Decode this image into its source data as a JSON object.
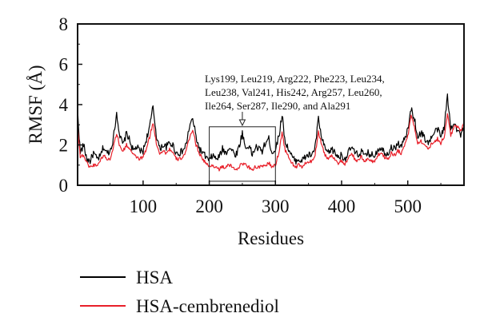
{
  "chart_data": {
    "type": "line",
    "xlabel": "Residues",
    "ylabel": "RMSF (Å)",
    "xlim": [
      1,
      585
    ],
    "ylim": [
      0,
      8
    ],
    "x_ticks": [
      100,
      200,
      300,
      400,
      500
    ],
    "y_ticks": [
      0,
      2,
      4,
      6,
      8
    ],
    "grid": false,
    "legend_position": "below",
    "annotation": {
      "lines": [
        "Lys199, Leu219, Arg222, Phe223, Leu234,",
        "Leu238, Val241, His242, Arg257, Leu260,",
        "Ile264, Ser287, Ile290, and Ala291"
      ],
      "box_x_range": [
        200,
        300
      ],
      "box_y_range": [
        0.2,
        2.9
      ],
      "arrow_x": 250
    },
    "series": [
      {
        "name": "HSA",
        "color": "#000000",
        "x": [
          1,
          5,
          10,
          15,
          20,
          25,
          30,
          35,
          40,
          45,
          50,
          55,
          60,
          65,
          70,
          75,
          80,
          85,
          90,
          95,
          100,
          105,
          110,
          115,
          120,
          125,
          130,
          135,
          140,
          145,
          150,
          155,
          160,
          165,
          170,
          175,
          180,
          185,
          190,
          195,
          200,
          205,
          210,
          215,
          220,
          225,
          230,
          235,
          240,
          245,
          250,
          255,
          260,
          265,
          270,
          275,
          280,
          285,
          290,
          295,
          300,
          305,
          310,
          315,
          320,
          325,
          330,
          335,
          340,
          345,
          350,
          355,
          360,
          365,
          370,
          375,
          380,
          385,
          390,
          395,
          400,
          405,
          410,
          415,
          420,
          425,
          430,
          435,
          440,
          445,
          450,
          455,
          460,
          465,
          470,
          475,
          480,
          485,
          490,
          495,
          500,
          505,
          510,
          515,
          520,
          525,
          530,
          535,
          540,
          545,
          550,
          555,
          560,
          565,
          570,
          575,
          580,
          585
        ],
        "values": [
          3.7,
          1.6,
          2.0,
          1.3,
          1.2,
          1.6,
          1.3,
          1.4,
          1.9,
          1.6,
          1.7,
          2.3,
          3.6,
          2.4,
          2.0,
          2.6,
          2.2,
          1.7,
          1.9,
          1.7,
          1.7,
          2.3,
          2.9,
          3.9,
          2.5,
          1.8,
          2.0,
          1.9,
          2.1,
          2.0,
          1.6,
          1.6,
          1.7,
          2.0,
          2.9,
          3.3,
          2.4,
          1.8,
          1.6,
          1.4,
          1.2,
          1.5,
          1.3,
          1.4,
          1.8,
          1.6,
          1.9,
          1.7,
          1.5,
          1.9,
          2.6,
          1.8,
          2.0,
          1.5,
          1.9,
          1.8,
          1.7,
          2.1,
          2.3,
          1.6,
          1.8,
          2.4,
          3.5,
          2.1,
          1.8,
          1.4,
          1.2,
          1.3,
          1.2,
          1.4,
          1.5,
          1.5,
          1.9,
          3.3,
          2.3,
          1.8,
          1.6,
          1.8,
          1.6,
          1.4,
          1.5,
          1.3,
          1.6,
          1.9,
          1.6,
          1.5,
          1.7,
          1.4,
          1.6,
          1.5,
          1.5,
          1.8,
          1.9,
          1.6,
          1.6,
          1.9,
          1.8,
          2.1,
          1.9,
          2.3,
          2.7,
          3.8,
          3.3,
          2.4,
          2.6,
          2.4,
          2.1,
          2.3,
          2.6,
          2.8,
          2.4,
          2.9,
          4.4,
          2.8,
          3.2,
          2.7,
          2.5,
          2.8
        ]
      },
      {
        "name": "HSA-cembrenediol",
        "color": "#e8202a",
        "x": [
          1,
          5,
          10,
          15,
          20,
          25,
          30,
          35,
          40,
          45,
          50,
          55,
          60,
          65,
          70,
          75,
          80,
          85,
          90,
          95,
          100,
          105,
          110,
          115,
          120,
          125,
          130,
          135,
          140,
          145,
          150,
          155,
          160,
          165,
          170,
          175,
          180,
          185,
          190,
          195,
          200,
          205,
          210,
          215,
          220,
          225,
          230,
          235,
          240,
          245,
          250,
          255,
          260,
          265,
          270,
          275,
          280,
          285,
          290,
          295,
          300,
          305,
          310,
          315,
          320,
          325,
          330,
          335,
          340,
          345,
          350,
          355,
          360,
          365,
          370,
          375,
          380,
          385,
          390,
          395,
          400,
          405,
          410,
          415,
          420,
          425,
          430,
          435,
          440,
          445,
          450,
          455,
          460,
          465,
          470,
          475,
          480,
          485,
          490,
          495,
          500,
          505,
          510,
          515,
          520,
          525,
          530,
          535,
          540,
          545,
          550,
          555,
          560,
          565,
          570,
          575,
          580,
          585
        ],
        "values": [
          3.0,
          1.4,
          1.5,
          1.1,
          0.9,
          1.0,
          1.0,
          1.2,
          1.5,
          1.3,
          1.3,
          1.9,
          2.6,
          1.9,
          1.7,
          2.0,
          1.8,
          1.5,
          1.4,
          1.3,
          1.4,
          1.8,
          2.4,
          3.1,
          2.1,
          1.6,
          1.7,
          1.6,
          1.8,
          1.6,
          1.3,
          1.3,
          1.4,
          1.7,
          2.3,
          2.8,
          2.0,
          1.6,
          1.3,
          1.1,
          0.9,
          1.0,
          0.9,
          0.8,
          0.9,
          0.9,
          1.0,
          0.9,
          0.8,
          0.9,
          1.1,
          1.0,
          0.9,
          0.8,
          0.9,
          0.9,
          0.9,
          1.0,
          1.1,
          0.9,
          1.0,
          1.6,
          2.6,
          1.7,
          1.4,
          1.1,
          0.9,
          1.0,
          0.9,
          1.1,
          1.1,
          1.2,
          1.5,
          2.7,
          2.0,
          1.5,
          1.3,
          1.5,
          1.3,
          1.1,
          1.2,
          1.0,
          1.3,
          1.6,
          1.3,
          1.2,
          1.4,
          1.2,
          1.3,
          1.2,
          1.2,
          1.5,
          1.6,
          1.4,
          1.3,
          1.6,
          1.5,
          1.7,
          1.6,
          2.0,
          2.4,
          3.5,
          2.9,
          2.1,
          2.2,
          2.0,
          1.8,
          2.0,
          2.2,
          2.3,
          2.1,
          2.4,
          3.5,
          2.5,
          2.9,
          2.9,
          2.7,
          3.2
        ]
      }
    ]
  }
}
